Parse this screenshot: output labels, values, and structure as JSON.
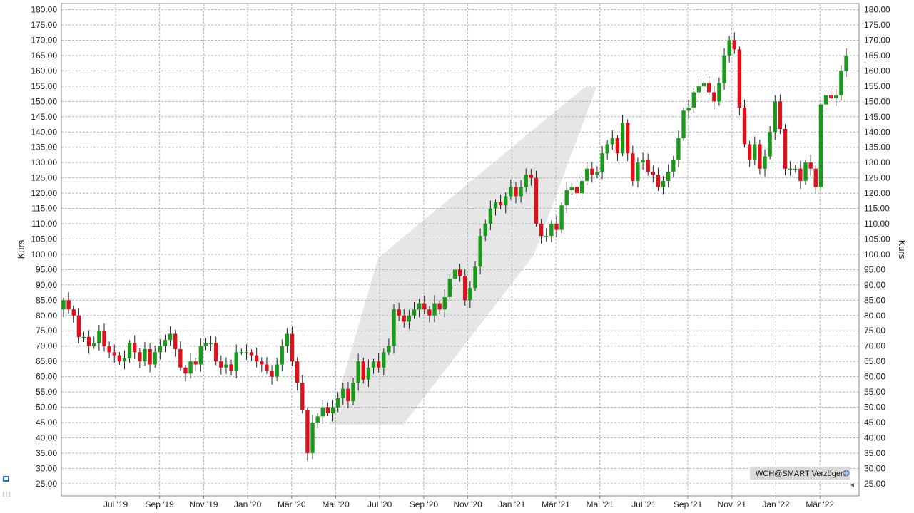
{
  "chart_data": {
    "type": "candlestick",
    "ylabel": "Kurs",
    "ylim": [
      21,
      182
    ],
    "y_ticks": [
      "25.00",
      "30.00",
      "35.00",
      "40.00",
      "45.00",
      "50.00",
      "55.00",
      "60.00",
      "65.00",
      "70.00",
      "75.00",
      "80.00",
      "85.00",
      "90.00",
      "95.00",
      "100.00",
      "105.00",
      "110.00",
      "115.00",
      "120.00",
      "125.00",
      "130.00",
      "135.00",
      "140.00",
      "145.00",
      "150.00",
      "155.00",
      "160.00",
      "165.00",
      "170.00",
      "175.00",
      "180.00"
    ],
    "x_ticks": [
      "Jul '19",
      "Sep '19",
      "Nov '19",
      "Jan '20",
      "Mär '20",
      "Mai '20",
      "Jul '20",
      "Sep '20",
      "Nov '20",
      "Jan '21",
      "Mär '21",
      "Mai '21",
      "Jul '21",
      "Sep '21",
      "Nov '21",
      "Jan '22",
      "Mär '22"
    ],
    "grid": true,
    "up_color": "#1a9a1a",
    "down_color": "#e0101a",
    "period": "weekly",
    "closes": [
      85,
      82,
      80,
      73,
      73,
      70,
      71,
      75,
      70,
      68,
      67,
      65,
      66,
      71,
      68,
      65,
      69,
      64,
      68,
      70,
      72,
      74,
      69,
      63,
      61,
      65,
      64,
      70,
      71,
      71,
      65,
      63,
      64,
      62,
      68,
      68,
      68,
      67,
      65,
      64,
      62,
      60,
      64,
      70,
      74,
      65,
      58,
      49,
      35,
      45,
      47,
      50,
      48,
      50,
      53,
      56,
      52,
      58,
      65,
      59,
      63,
      65,
      63,
      68,
      70,
      82,
      80,
      78,
      80,
      82,
      84,
      82,
      80,
      84,
      82,
      86,
      92,
      95,
      93,
      85,
      89,
      96,
      106,
      110,
      115,
      117,
      116,
      119,
      122,
      119,
      122,
      126,
      125,
      110,
      106,
      106,
      110,
      108,
      116,
      121,
      122,
      120,
      124,
      128,
      126,
      127,
      133,
      136,
      138,
      133,
      143,
      133,
      124,
      130,
      131,
      127,
      126,
      122,
      124,
      127,
      131,
      138,
      147,
      148,
      153,
      155,
      156,
      153,
      150,
      156,
      165,
      170,
      167,
      148,
      136,
      131,
      136,
      128,
      132,
      140,
      150,
      141,
      128,
      128,
      128,
      124,
      130,
      128,
      122,
      149,
      152,
      151,
      152,
      160,
      165
    ],
    "badge": "WCH@SMART Verzögert",
    "colors": {
      "grid": "#b4b4b4",
      "band": "#e6e6e6",
      "badge_bg": "#d9d9d9"
    }
  }
}
